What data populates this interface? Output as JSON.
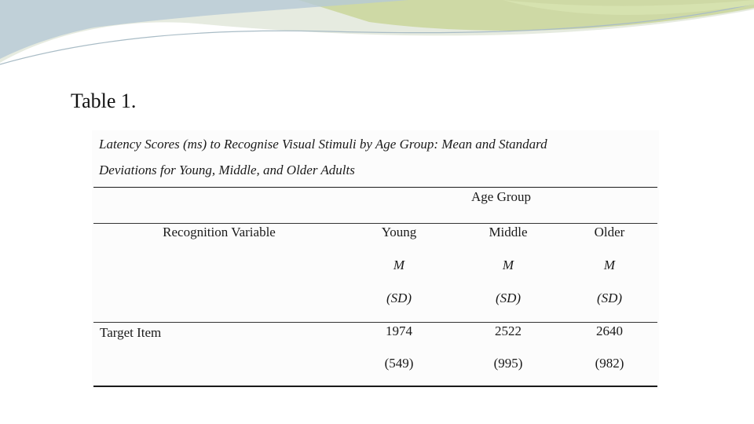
{
  "slide": {
    "title": "Table 1."
  },
  "table": {
    "caption_line1": "Latency Scores (ms) to Recognise Visual Stimuli by Age Group: Mean and Standard",
    "caption_line2": "Deviations for Young, Middle, and Older Adults",
    "group_header": "Age Group",
    "row_header": "Recognition Variable",
    "columns": [
      {
        "name": "Young",
        "stat": "M",
        "spread": "(SD)"
      },
      {
        "name": "Middle",
        "stat": "M",
        "spread": "(SD)"
      },
      {
        "name": "Older",
        "stat": "M",
        "spread": "(SD)"
      }
    ],
    "rows": [
      {
        "label": "Target Item",
        "means": [
          "1974",
          "2522",
          "2640"
        ],
        "sds": [
          "(549)",
          "(995)",
          "(982)"
        ]
      }
    ]
  },
  "colors": {
    "banner_light": "#dfe6cf",
    "banner_green": "#c9d69a",
    "banner_blue": "#b7c9d6",
    "text": "#1a1a1a"
  }
}
